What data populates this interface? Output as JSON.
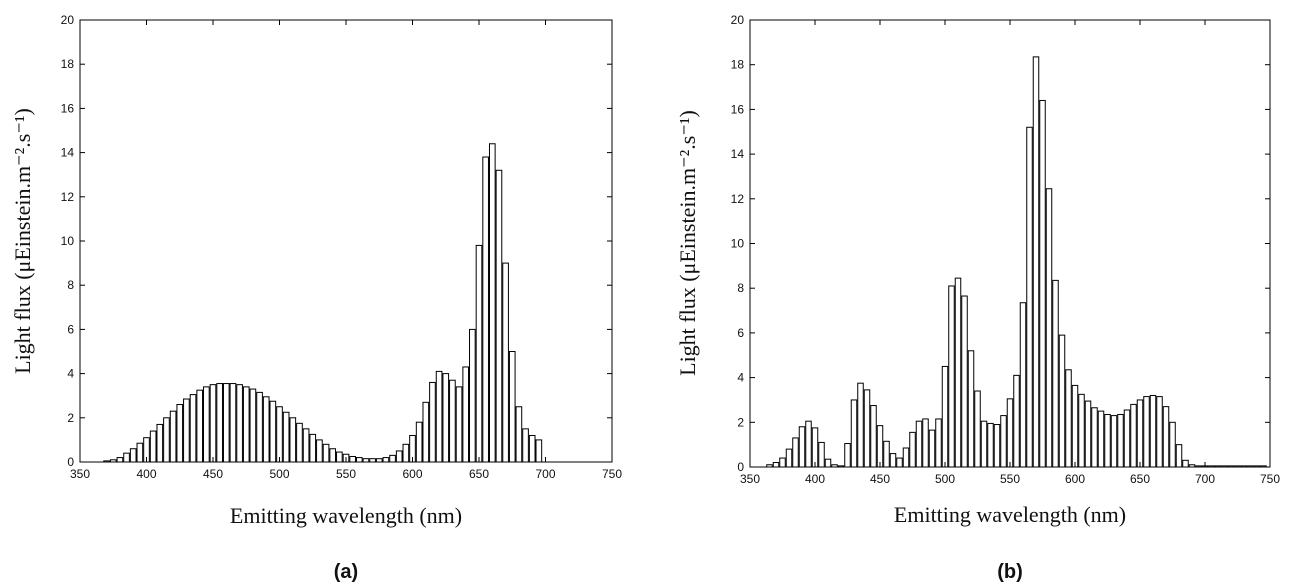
{
  "chart_data": [
    {
      "type": "bar",
      "panel_label": "(a)",
      "xlabel": "Emitting wavelength (nm)",
      "ylabel": "Light flux (μEinstein.m⁻².s⁻¹)",
      "xlim": [
        350,
        750
      ],
      "ylim": [
        0,
        20
      ],
      "x_ticks": [
        350,
        400,
        450,
        500,
        550,
        600,
        650,
        700,
        750
      ],
      "y_ticks": [
        0,
        2,
        4,
        6,
        8,
        10,
        12,
        14,
        16,
        18,
        20
      ],
      "bin_width": 5,
      "x": [
        370,
        375,
        380,
        385,
        390,
        395,
        400,
        405,
        410,
        415,
        420,
        425,
        430,
        435,
        440,
        445,
        450,
        455,
        460,
        465,
        470,
        475,
        480,
        485,
        490,
        495,
        500,
        505,
        510,
        515,
        520,
        525,
        530,
        535,
        540,
        545,
        550,
        555,
        560,
        565,
        570,
        575,
        580,
        585,
        590,
        595,
        600,
        605,
        610,
        615,
        620,
        625,
        630,
        635,
        640,
        645,
        650,
        655,
        660,
        665,
        670,
        675,
        680,
        685,
        690,
        695
      ],
      "values": [
        0.05,
        0.1,
        0.2,
        0.4,
        0.6,
        0.85,
        1.1,
        1.4,
        1.7,
        2.0,
        2.3,
        2.6,
        2.85,
        3.05,
        3.25,
        3.4,
        3.5,
        3.55,
        3.55,
        3.55,
        3.5,
        3.4,
        3.3,
        3.15,
        2.95,
        2.75,
        2.5,
        2.25,
        2.0,
        1.75,
        1.5,
        1.25,
        1.0,
        0.8,
        0.6,
        0.45,
        0.35,
        0.25,
        0.2,
        0.15,
        0.15,
        0.15,
        0.2,
        0.3,
        0.5,
        0.8,
        1.2,
        1.8,
        2.7,
        3.6,
        4.1,
        4.0,
        3.7,
        3.4,
        4.3,
        6.0,
        9.8,
        13.8,
        14.4,
        13.2,
        9.0,
        5.0,
        2.5,
        1.5,
        1.2,
        1.0
      ]
    },
    {
      "type": "bar",
      "panel_label": "(b)",
      "xlabel": "Emitting wavelength (nm)",
      "ylabel": "Light flux (μEinstein.m⁻².s⁻¹)",
      "xlim": [
        350,
        750
      ],
      "ylim": [
        0,
        20
      ],
      "x_ticks": [
        350,
        400,
        450,
        500,
        550,
        600,
        650,
        700,
        750
      ],
      "y_ticks": [
        0,
        2,
        4,
        6,
        8,
        10,
        12,
        14,
        16,
        18,
        20
      ],
      "bin_width": 5,
      "x": [
        365,
        370,
        375,
        380,
        385,
        390,
        395,
        400,
        405,
        410,
        415,
        420,
        425,
        430,
        435,
        440,
        445,
        450,
        455,
        460,
        465,
        470,
        475,
        480,
        485,
        490,
        495,
        500,
        505,
        510,
        515,
        520,
        525,
        530,
        535,
        540,
        545,
        550,
        555,
        560,
        565,
        570,
        575,
        580,
        585,
        590,
        595,
        600,
        605,
        610,
        615,
        620,
        625,
        630,
        635,
        640,
        645,
        650,
        655,
        660,
        665,
        670,
        675,
        680,
        685,
        690,
        695,
        700,
        705,
        710,
        715,
        720,
        725,
        730,
        735,
        740,
        745
      ],
      "values": [
        0.1,
        0.2,
        0.4,
        0.8,
        1.3,
        1.8,
        2.05,
        1.75,
        1.1,
        0.35,
        0.1,
        0.05,
        1.05,
        3.0,
        3.75,
        3.45,
        2.75,
        1.85,
        1.15,
        0.6,
        0.4,
        0.85,
        1.55,
        2.05,
        2.15,
        1.65,
        2.15,
        4.5,
        8.1,
        8.45,
        7.65,
        5.2,
        3.4,
        2.05,
        1.95,
        1.9,
        2.3,
        3.05,
        4.1,
        7.35,
        15.2,
        18.35,
        16.4,
        12.45,
        8.35,
        5.9,
        4.35,
        3.65,
        3.25,
        2.95,
        2.65,
        2.5,
        2.35,
        2.3,
        2.35,
        2.55,
        2.8,
        3.0,
        3.15,
        3.2,
        3.15,
        2.7,
        2.0,
        1.0,
        0.3,
        0.1,
        0.05,
        0.05,
        0.05,
        0.05,
        0.05,
        0.05,
        0.05,
        0.05,
        0.05,
        0.05,
        0.05
      ]
    }
  ]
}
